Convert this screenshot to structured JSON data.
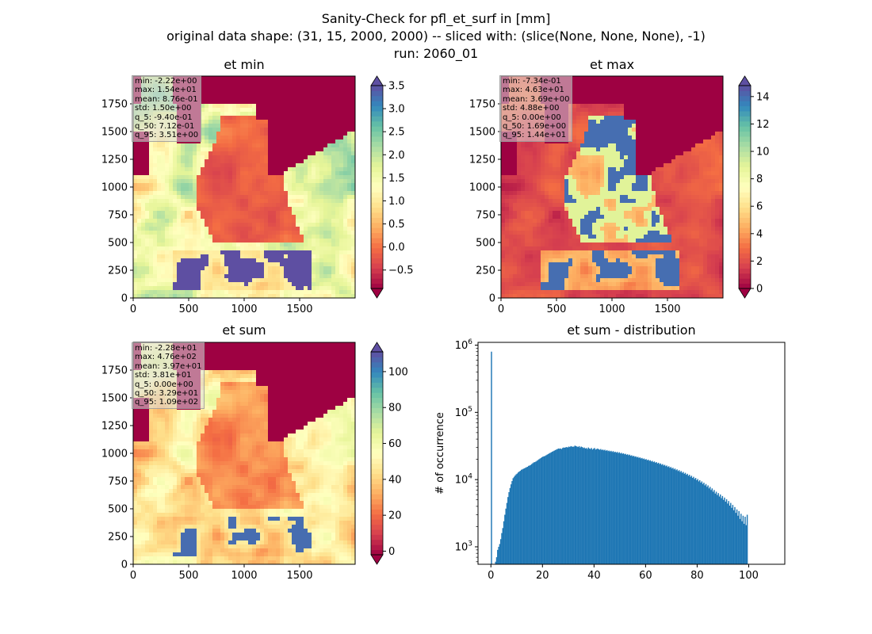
{
  "suptitle": {
    "line1": "Sanity-Check for pfl_et_surf in [mm]",
    "line2": "original data shape: (31, 15, 2000, 2000) -- sliced with: (slice(None, None, None), -1)",
    "line3": "run: 2060_01"
  },
  "colors": {
    "histogram": "#1f77b4",
    "colormap": "Spectral",
    "outside_domain": "#9e0142",
    "low": "#9e0142",
    "high": "#5e4fa2"
  },
  "chart_data": [
    {
      "type": "heatmap",
      "title": "et min",
      "xlim": [
        0,
        2000
      ],
      "ylim": [
        0,
        2000
      ],
      "xticks": [
        "0",
        "500",
        "1000",
        "1500"
      ],
      "yticks": [
        "0",
        "250",
        "500",
        "750",
        "1000",
        "1250",
        "1500",
        "1750"
      ],
      "colorbar": {
        "vmin": -0.9,
        "vmax": 3.5,
        "extend": "both",
        "ticks": [
          "−0.5",
          "0.0",
          "0.5",
          "1.0",
          "1.5",
          "2.0",
          "2.5",
          "3.0",
          "3.5"
        ],
        "tick_values": [
          -0.5,
          0.0,
          0.5,
          1.0,
          1.5,
          2.0,
          2.5,
          3.0,
          3.5
        ]
      },
      "stats": [
        "min: -2.22e+00",
        "max: 1.54e+01",
        "mean: 8.76e-01",
        "std: 1.50e+00",
        "q_5: -9.40e-01",
        "q_50: 7.12e-01",
        "q_95: 3.51e+00"
      ]
    },
    {
      "type": "heatmap",
      "title": "et max",
      "xlim": [
        0,
        2000
      ],
      "ylim": [
        0,
        2000
      ],
      "xticks": [
        "0",
        "500",
        "1000",
        "1500"
      ],
      "yticks": [
        "0",
        "250",
        "500",
        "750",
        "1000",
        "1250",
        "1500",
        "1750"
      ],
      "colorbar": {
        "vmin": 0,
        "vmax": 14.8,
        "extend": "both",
        "ticks": [
          "0",
          "2",
          "4",
          "6",
          "8",
          "10",
          "12",
          "14"
        ],
        "tick_values": [
          0,
          2,
          4,
          6,
          8,
          10,
          12,
          14
        ]
      },
      "stats": [
        "min: -7.34e-01",
        "max: 4.63e+01",
        "mean: 3.69e+00",
        "std: 4.88e+00",
        "q_5: 0.00e+00",
        "q_50: 1.69e+00",
        "q_95: 1.44e+01"
      ]
    },
    {
      "type": "heatmap",
      "title": "et sum",
      "xlim": [
        0,
        2000
      ],
      "ylim": [
        0,
        2000
      ],
      "xticks": [
        "0",
        "500",
        "1000",
        "1500"
      ],
      "yticks": [
        "0",
        "250",
        "500",
        "750",
        "1000",
        "1250",
        "1500",
        "1750"
      ],
      "colorbar": {
        "vmin": -2,
        "vmax": 111,
        "extend": "both",
        "ticks": [
          "0",
          "20",
          "40",
          "60",
          "80",
          "100"
        ],
        "tick_values": [
          0,
          20,
          40,
          60,
          80,
          100
        ]
      },
      "stats": [
        "min: -2.28e+01",
        "max: 4.76e+02",
        "mean: 3.97e+01",
        "std: 3.81e+01",
        "q_5: 0.00e+00",
        "q_50: 3.29e+01",
        "q_95: 1.09e+02"
      ]
    },
    {
      "type": "bar",
      "title": "et sum - distribution",
      "xlabel": "",
      "ylabel": "# of occurrence",
      "yscale": "log",
      "xlim": [
        -5,
        114
      ],
      "ylim": [
        550,
        1100000
      ],
      "xticks": [
        0,
        20,
        40,
        60,
        80,
        100
      ],
      "yticks": [
        {
          "value": 1000,
          "base": "10",
          "exp": "3"
        },
        {
          "value": 10000,
          "base": "10",
          "exp": "4"
        },
        {
          "value": 100000,
          "base": "10",
          "exp": "5"
        },
        {
          "value": 1000000,
          "base": "10",
          "exp": "6"
        }
      ],
      "bins": {
        "start": 0,
        "width": 0.4,
        "counts": [
          800000,
          0,
          0,
          0,
          600,
          700,
          900,
          1000,
          1100,
          1300,
          1600,
          1900,
          2400,
          3000,
          3700,
          4500,
          5500,
          6500,
          7500,
          8500,
          9500,
          10500,
          11000,
          11500,
          12000,
          12300,
          12800,
          13200,
          13500,
          14000,
          14200,
          14500,
          14700,
          15000,
          15300,
          15500,
          16000,
          16200,
          16500,
          17000,
          17500,
          18000,
          18200,
          18500,
          19000,
          19500,
          20000,
          20500,
          21000,
          21500,
          22000,
          22200,
          22500,
          23000,
          23500,
          24000,
          24500,
          25000,
          25500,
          26000,
          26500,
          27000,
          27500,
          28000,
          28500,
          29000,
          28800,
          29000,
          28500,
          29500,
          30000,
          29800,
          30200,
          30500,
          30000,
          31000,
          30500,
          31500,
          31000,
          30800,
          31000,
          32000,
          31500,
          31000,
          30500,
          31500,
          30000,
          31000,
          30500,
          29500,
          30000,
          29000,
          29500,
          28500,
          30000,
          29000,
          28500,
          29500,
          28000,
          28800,
          29500,
          28000,
          28500,
          29000,
          28200,
          27800,
          28500,
          27500,
          28000,
          27200,
          27800,
          26800,
          27500,
          26500,
          27000,
          26200,
          26800,
          25800,
          26500,
          25500,
          26000,
          25200,
          25800,
          24800,
          25500,
          24500,
          25000,
          24200,
          24600,
          23800,
          24200,
          23400,
          23800,
          23000,
          23500,
          22600,
          23000,
          22200,
          22600,
          21800,
          22200,
          21400,
          21800,
          21000,
          21400,
          20600,
          21000,
          20200,
          20600,
          19800,
          20200,
          19400,
          19800,
          19000,
          19400,
          18600,
          19000,
          18200,
          18600,
          17800,
          18200,
          17400,
          17800,
          17000,
          17400,
          16600,
          17000,
          16200,
          16600,
          15800,
          16200,
          15400,
          15800,
          15000,
          15400,
          14600,
          15000,
          14200,
          14600,
          13800,
          14200,
          13400,
          13800,
          13000,
          13400,
          12600,
          13000,
          12200,
          12600,
          11800,
          12200,
          11400,
          11800,
          11000,
          11400,
          10600,
          11000,
          10200,
          10600,
          9800,
          10200,
          9400,
          9800,
          9000,
          9400,
          8600,
          9000,
          8200,
          8600,
          7800,
          8200,
          7400,
          7800,
          7000,
          7400,
          6600,
          7000,
          6200,
          6600,
          5900,
          6300,
          5600,
          6000,
          5300,
          5700,
          5000,
          5400,
          4700,
          5100,
          4400,
          4800,
          4100,
          4500,
          3800,
          4200,
          3500,
          3900,
          3200,
          3600,
          2900,
          3400,
          2600,
          3100,
          2400,
          2900,
          2200,
          2800,
          2100,
          3000
        ]
      }
    }
  ]
}
